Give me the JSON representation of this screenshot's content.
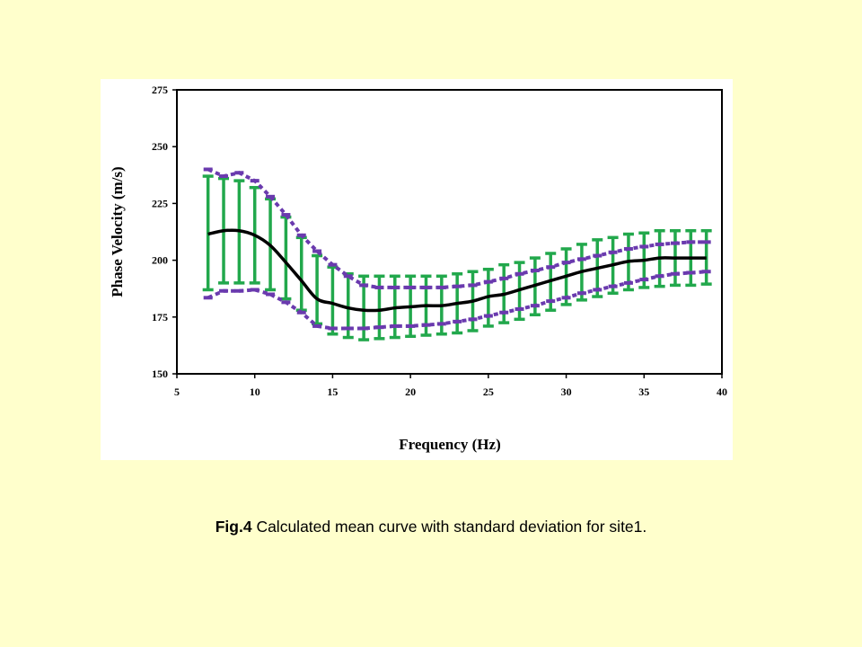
{
  "caption": {
    "label": "Fig.4",
    "text": " Calculated mean curve with standard deviation for site1."
  },
  "colors": {
    "page_background": "#FFFFCC",
    "plot_background": "#FFFFFF",
    "mean_line": "#000000",
    "std_band_green": "#22A84C",
    "std_band_purple": "#6A3AAE"
  },
  "chart_data": {
    "type": "line",
    "title": "",
    "xlabel": "Frequency (Hz)",
    "ylabel": "Phase Velocity (m/s)",
    "xlim": [
      5,
      40
    ],
    "ylim": [
      150,
      275
    ],
    "xticks": [
      5,
      10,
      15,
      20,
      25,
      30,
      35,
      40
    ],
    "yticks": [
      150,
      175,
      200,
      225,
      250,
      275
    ],
    "grid": false,
    "legend": "none",
    "x": [
      7,
      8,
      9,
      10,
      11,
      12,
      13,
      14,
      15,
      16,
      17,
      18,
      19,
      20,
      21,
      22,
      23,
      24,
      25,
      26,
      27,
      28,
      29,
      30,
      31,
      32,
      33,
      34,
      35,
      36,
      37,
      38,
      39
    ],
    "series": [
      {
        "role": "mean",
        "values": [
          211.5,
          213,
          213,
          211,
          206.5,
          199,
          191,
          183,
          181,
          179,
          178,
          178,
          179,
          179.5,
          180,
          180,
          181,
          182,
          184,
          185,
          187,
          189,
          191,
          193,
          195,
          196.5,
          198,
          199.5,
          200,
          201,
          201,
          201,
          201
        ]
      },
      {
        "role": "std_green",
        "upper": [
          237,
          236,
          235,
          232,
          227,
          219,
          210,
          202,
          197,
          194,
          193,
          193,
          193,
          193,
          193,
          193,
          194,
          195,
          196,
          198,
          199,
          201,
          203,
          205,
          207,
          209,
          210,
          211.5,
          212,
          213,
          213,
          213,
          213
        ],
        "lower": [
          187,
          190,
          190,
          190,
          187,
          183,
          178,
          172,
          167.5,
          166,
          165,
          165.5,
          166,
          166.5,
          167,
          167.5,
          168,
          169,
          171,
          172.5,
          174,
          176,
          178,
          180.5,
          182.5,
          184,
          185.5,
          187,
          188,
          188.5,
          189,
          189,
          189.5
        ]
      },
      {
        "role": "std_purple",
        "upper": [
          240,
          237,
          238.5,
          235,
          228,
          220,
          211,
          204,
          198,
          193,
          189,
          188,
          188,
          188,
          188,
          188,
          188.5,
          189,
          190.5,
          192,
          194,
          195.5,
          197,
          199,
          200.5,
          202,
          203.5,
          205,
          206,
          207,
          207.5,
          208,
          208
        ],
        "lower": [
          183.5,
          186.5,
          186.5,
          187,
          185,
          181.5,
          177,
          171,
          170,
          170,
          170,
          170.5,
          171,
          171,
          171.5,
          172,
          173,
          174,
          175.5,
          177,
          178.5,
          180,
          182,
          183.5,
          185.5,
          187,
          188.5,
          190,
          191.5,
          193,
          194,
          194.5,
          195
        ]
      }
    ]
  }
}
